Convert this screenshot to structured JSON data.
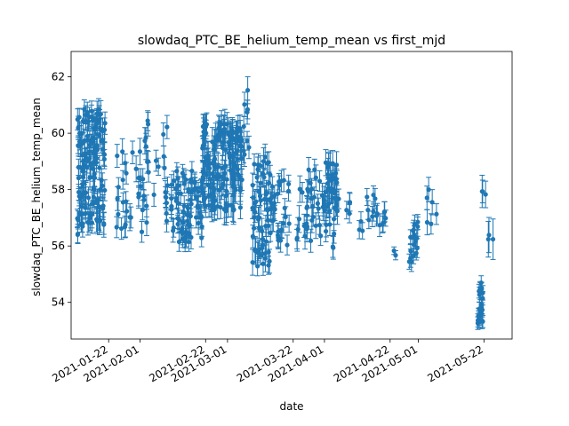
{
  "chart_data": {
    "type": "scatter",
    "title": "slowdaq_PTC_BE_helium_temp_mean vs first_mjd",
    "xlabel": "date",
    "ylabel": "slowdaq_PTC_BE_helium_temp_mean",
    "x_tick_labels": [
      "2021-01-22",
      "2021-02-01",
      "2021-02-22",
      "2021-03-01",
      "2021-03-22",
      "2021-04-01",
      "2021-04-22",
      "2021-05-01",
      "2021-05-22"
    ],
    "y_ticks": [
      54,
      56,
      58,
      60,
      62
    ],
    "xlim": [
      "2021-01-10",
      "2021-05-31"
    ],
    "ylim": [
      52.7,
      62.9
    ],
    "grid": false,
    "marker_color": "#1f77b4",
    "error_bars": true,
    "clusters": [
      {
        "start": "2021-01-12",
        "end": "2021-01-14",
        "n": 55,
        "ymin": 56.3,
        "ymax": 61.0,
        "err": 0.35
      },
      {
        "start": "2021-01-15",
        "end": "2021-01-20",
        "n": 90,
        "ymin": 56.6,
        "ymax": 61.0,
        "err": 0.4
      },
      {
        "start": "2021-01-24",
        "end": "2021-01-31",
        "n": 22,
        "ymin": 56.5,
        "ymax": 59.5,
        "err": 0.4
      },
      {
        "start": "2021-02-01",
        "end": "2021-02-03",
        "n": 18,
        "ymin": 56.0,
        "ymax": 60.7,
        "err": 0.4
      },
      {
        "start": "2021-02-05",
        "end": "2021-02-09",
        "n": 14,
        "ymin": 56.8,
        "ymax": 60.6,
        "err": 0.35
      },
      {
        "start": "2021-02-11",
        "end": "2021-02-21",
        "n": 80,
        "ymin": 56.1,
        "ymax": 58.8,
        "err": 0.35
      },
      {
        "start": "2021-02-21",
        "end": "2021-02-28",
        "n": 90,
        "ymin": 57.2,
        "ymax": 60.4,
        "err": 0.45
      },
      {
        "start": "2021-03-01",
        "end": "2021-03-05",
        "n": 60,
        "ymin": 57.2,
        "ymax": 60.2,
        "err": 0.45
      },
      {
        "start": "2021-03-05",
        "end": "2021-03-07",
        "n": 10,
        "ymin": 59.0,
        "ymax": 61.8,
        "err": 0.4
      },
      {
        "start": "2021-03-09",
        "end": "2021-03-14",
        "n": 60,
        "ymin": 55.2,
        "ymax": 59.2,
        "err": 0.4
      },
      {
        "start": "2021-03-14",
        "end": "2021-03-20",
        "n": 30,
        "ymin": 56.0,
        "ymax": 58.5,
        "err": 0.35
      },
      {
        "start": "2021-03-23",
        "end": "2021-03-31",
        "n": 35,
        "ymin": 56.0,
        "ymax": 58.9,
        "err": 0.4
      },
      {
        "start": "2021-04-01",
        "end": "2021-04-05",
        "n": 45,
        "ymin": 55.8,
        "ymax": 59.0,
        "err": 0.4
      },
      {
        "start": "2021-04-08",
        "end": "2021-04-20",
        "n": 22,
        "ymin": 56.5,
        "ymax": 58.0,
        "err": 0.35
      },
      {
        "start": "2021-04-23",
        "end": "2021-04-23",
        "n": 2,
        "ymin": 55.6,
        "ymax": 55.9,
        "err": 0.15
      },
      {
        "start": "2021-04-28",
        "end": "2021-04-30",
        "n": 18,
        "ymin": 55.4,
        "ymax": 56.9,
        "err": 0.3
      },
      {
        "start": "2021-05-03",
        "end": "2021-05-06",
        "n": 6,
        "ymin": 56.6,
        "ymax": 58.6,
        "err": 0.4
      },
      {
        "start": "2021-05-20",
        "end": "2021-05-21",
        "n": 22,
        "ymin": 53.2,
        "ymax": 54.8,
        "err": 0.25
      },
      {
        "start": "2021-05-21",
        "end": "2021-05-22",
        "n": 3,
        "ymin": 57.0,
        "ymax": 58.1,
        "err": 0.5
      },
      {
        "start": "2021-05-23",
        "end": "2021-05-24",
        "n": 3,
        "ymin": 56.2,
        "ymax": 56.6,
        "err": 0.6
      }
    ]
  }
}
